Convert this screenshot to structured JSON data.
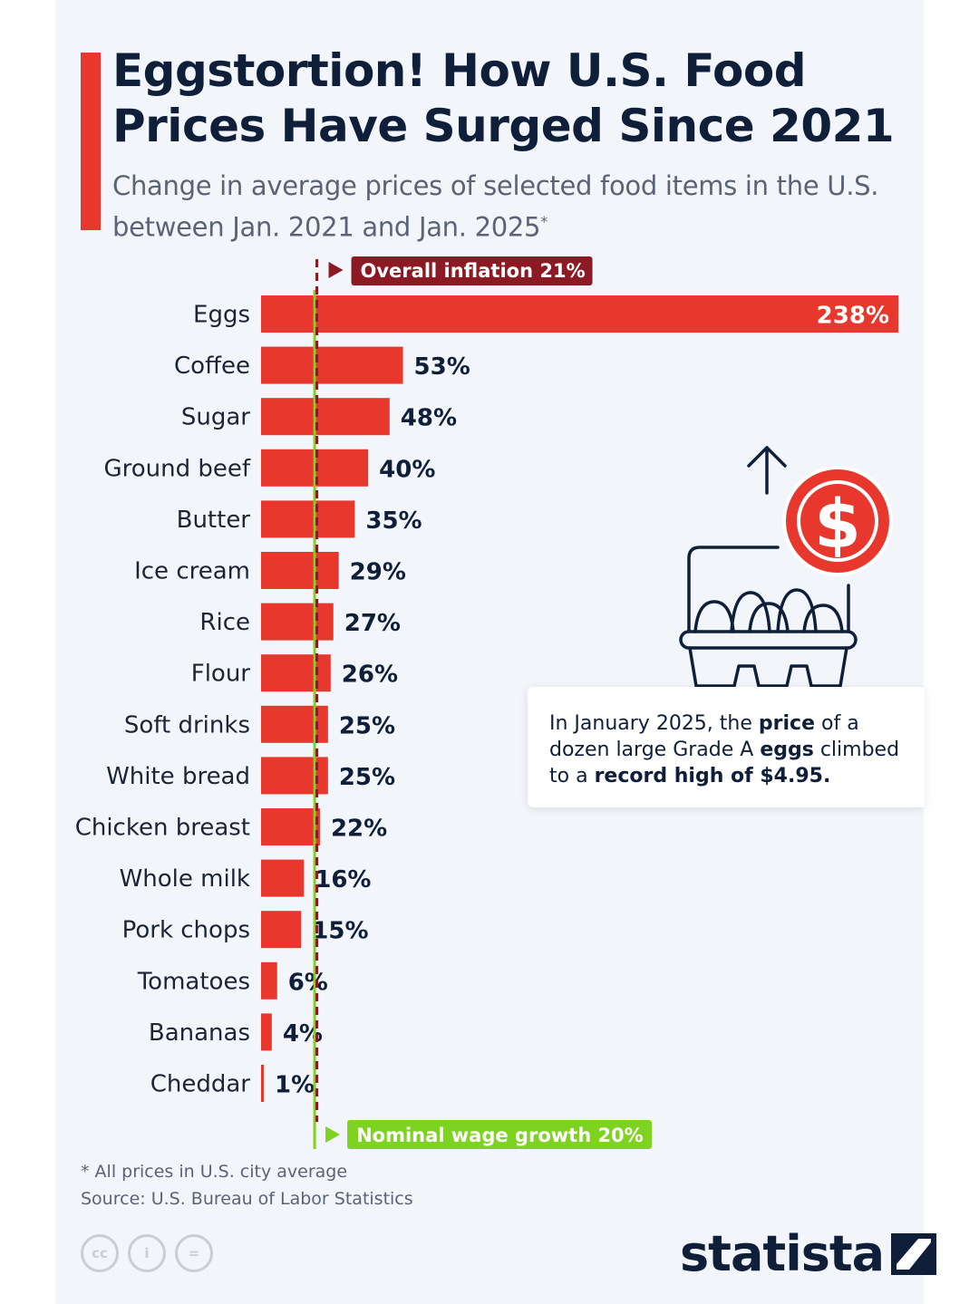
{
  "title": "Eggstortion! How U.S. Food Prices Have Surged Since 2021",
  "subtitle": "Change in average prices of selected food items in the U.S. between Jan. 2021 and Jan. 2025",
  "subtitle_mark": "*",
  "colors": {
    "bar": "#e8372d",
    "inflation": "#8b1a24",
    "wage": "#7ed320",
    "text": "#0f1f3a"
  },
  "chart_data": {
    "type": "bar",
    "orientation": "horizontal",
    "title": "Eggstortion! How U.S. Food Prices Have Surged Since 2021",
    "unit": "%",
    "categories": [
      "Eggs",
      "Coffee",
      "Sugar",
      "Ground beef",
      "Butter",
      "Ice cream",
      "Rice",
      "Flour",
      "Soft drinks",
      "White bread",
      "Chicken breast",
      "Whole milk",
      "Pork chops",
      "Tomatoes",
      "Bananas",
      "Cheddar"
    ],
    "values": [
      238,
      53,
      48,
      40,
      35,
      29,
      27,
      26,
      25,
      25,
      22,
      16,
      15,
      6,
      4,
      1
    ],
    "value_labels": [
      "238%",
      "53%",
      "48%",
      "40%",
      "35%",
      "29%",
      "27%",
      "26%",
      "25%",
      "25%",
      "22%",
      "16%",
      "15%",
      "6%",
      "4%",
      "1%"
    ],
    "xlim": [
      0,
      238
    ],
    "reference_lines": [
      {
        "label": "Overall inflation 21%",
        "value": 21,
        "position": "top"
      },
      {
        "label": "Nominal wage growth 20%",
        "value": 20,
        "position": "bottom"
      }
    ]
  },
  "callout": {
    "part1": "In January 2025, the ",
    "bold1": "price",
    "part2": " of a dozen large Grade A ",
    "bold2": "eggs",
    "part3": " climbed to a ",
    "bold3": "record high of $4.95."
  },
  "illustration": {
    "icon": "egg-carton-price-up-icon",
    "currency_symbol": "$"
  },
  "footnote": "* All prices in U.S. city average",
  "source": "Source: U.S. Bureau of Labor Statistics",
  "license": {
    "cc": "cc",
    "by": "i",
    "nd": "="
  },
  "brand": "statista"
}
